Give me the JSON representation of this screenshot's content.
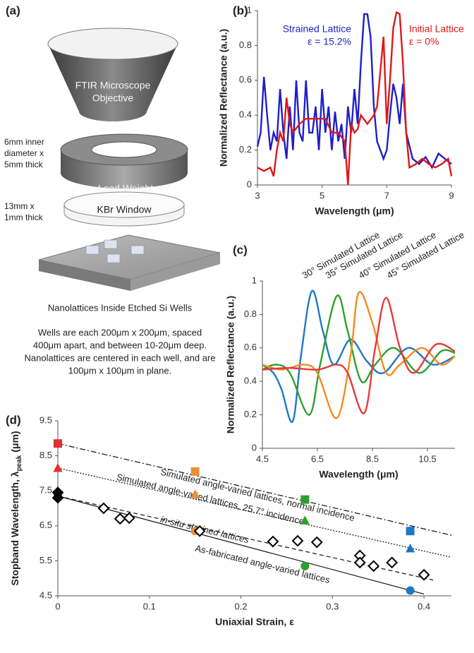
{
  "diagram": {
    "label": "(a)",
    "objective": [
      "FTIR Microscope",
      "Objective"
    ],
    "weight_note": [
      "6mm inner",
      "diameter x",
      "5mm thick"
    ],
    "weight": "Lead Weight",
    "window_note": [
      "13mm x",
      "1mm thick"
    ],
    "window": "KBr Window",
    "caption": "Nanolattices Inside Etched Si Wells",
    "description": [
      "Wells are each 200μm x 200μm, spaced",
      "400μm apart, and between 10-20μm deep.",
      "Nanolattices are centered in each well, and are",
      "100μm x 100μm in plane."
    ]
  },
  "chart_data": [
    {
      "type": "line",
      "label": "(b)",
      "x_label": "Wavelength (μm)",
      "y_label": "Normalized Reflectance (a.u.)",
      "xlim": [
        3,
        9
      ],
      "xticks": [
        3,
        5,
        7,
        9
      ],
      "ylim": [
        0,
        1
      ],
      "yticks": [
        0,
        0.2,
        0.4,
        0.6,
        0.8,
        1
      ],
      "series": [
        {
          "name": "Strained Lattice",
          "annotation": "ε = 15.2%",
          "color": "#1f1fc8",
          "x": [
            3,
            3.1,
            3.2,
            3.3,
            3.4,
            3.5,
            3.6,
            3.7,
            3.8,
            3.9,
            4.0,
            4.1,
            4.2,
            4.3,
            4.4,
            4.5,
            4.6,
            4.7,
            4.8,
            4.9,
            5.0,
            5.1,
            5.2,
            5.3,
            5.4,
            5.5,
            5.6,
            5.7,
            5.8,
            5.9,
            6.0,
            6.1,
            6.2,
            6.3,
            6.4,
            6.5,
            6.6,
            6.7,
            6.8,
            6.9,
            7.0,
            7.1,
            7.2,
            7.3,
            7.4,
            7.5,
            7.6,
            7.8,
            8.0,
            8.2,
            8.4,
            8.6,
            8.8,
            9.0
          ],
          "values": [
            0.22,
            0.3,
            0.62,
            0.4,
            0.2,
            0.3,
            0.25,
            0.55,
            0.3,
            0.15,
            0.45,
            0.2,
            0.6,
            0.3,
            0.25,
            0.6,
            0.3,
            0.3,
            0.45,
            0.2,
            0.55,
            0.3,
            0.45,
            0.2,
            0.42,
            0.25,
            0.35,
            0.15,
            0.45,
            0.3,
            0.55,
            0.35,
            0.7,
            0.98,
            0.98,
            0.85,
            0.45,
            0.25,
            0.2,
            0.15,
            0.2,
            0.4,
            0.58,
            0.5,
            0.35,
            0.58,
            0.3,
            0.15,
            0.12,
            0.16,
            0.1,
            0.18,
            0.15,
            0.12
          ]
        },
        {
          "name": "Initial Lattice",
          "annotation": "ε = 0%",
          "color": "#e01818",
          "x": [
            3,
            3.2,
            3.4,
            3.5,
            3.6,
            3.7,
            3.8,
            3.9,
            4.0,
            4.1,
            4.3,
            4.5,
            4.8,
            5.1,
            5.3,
            5.5,
            5.7,
            5.8,
            5.9,
            6.0,
            6.1,
            6.2,
            6.4,
            6.6,
            6.7,
            6.8,
            6.9,
            7.0,
            7.1,
            7.2,
            7.3,
            7.4,
            7.5,
            7.6,
            7.7,
            7.9,
            8.1,
            8.3,
            8.5,
            8.7,
            8.9,
            9.0
          ],
          "values": [
            0.1,
            0.08,
            0.1,
            0.05,
            0.2,
            0.3,
            0.25,
            0.5,
            0.35,
            0.3,
            0.35,
            0.38,
            0.38,
            0.38,
            0.3,
            0.3,
            0.25,
            0,
            0.35,
            0.3,
            0.32,
            0.4,
            0.35,
            0.4,
            0.45,
            0.65,
            0.85,
            0.35,
            0.6,
            0.9,
            0.99,
            0.98,
            0.7,
            0.3,
            0.1,
            0.12,
            0.15,
            0.12,
            0.1,
            0.12,
            0.15,
            0.05
          ]
        }
      ]
    },
    {
      "type": "line",
      "label": "(c)",
      "x_label": "Wavelength (μm)",
      "y_label": "Normalized Reflectance (a.u.)",
      "xlim": [
        4.5,
        11.5
      ],
      "xticks": [
        4.5,
        6.5,
        8.5,
        10.5
      ],
      "ylim": [
        0,
        1
      ],
      "yticks": [
        0,
        0.2,
        0.4,
        0.6,
        0.8,
        1
      ],
      "smooth": true,
      "series": [
        {
          "name": "30° Simulated Lattice",
          "color": "#1f77c4",
          "x": [
            4.5,
            4.9,
            5.2,
            5.6,
            5.9,
            6.3,
            6.7,
            7.1,
            7.7,
            8.3,
            8.9,
            9.8,
            10.7,
            11.5
          ],
          "values": [
            0.5,
            0.45,
            0.35,
            0.16,
            0.55,
            0.94,
            0.7,
            0.5,
            0.65,
            0.52,
            0.45,
            0.6,
            0.5,
            0.55
          ]
        },
        {
          "name": "35° Simulated Lattice",
          "color": "#2ca02c",
          "x": [
            4.5,
            5.0,
            5.5,
            6.2,
            6.6,
            7.2,
            7.6,
            8.1,
            8.6,
            9.3,
            10.2,
            11.0,
            11.5
          ],
          "values": [
            0.47,
            0.5,
            0.45,
            0.2,
            0.5,
            0.91,
            0.7,
            0.4,
            0.5,
            0.6,
            0.45,
            0.58,
            0.57
          ]
        },
        {
          "name": "40° Simulated Lattice",
          "color": "#f28c1e",
          "x": [
            4.5,
            5.2,
            6.0,
            6.5,
            7.2,
            7.7,
            8.0,
            8.5,
            9.0,
            9.5,
            10.3,
            11.0,
            11.5
          ],
          "values": [
            0.5,
            0.47,
            0.5,
            0.45,
            0.18,
            0.55,
            0.93,
            0.75,
            0.45,
            0.5,
            0.6,
            0.5,
            0.55
          ]
        },
        {
          "name": "45° Simulated Lattice",
          "color": "#e8383a",
          "x": [
            4.5,
            5.5,
            6.5,
            7.2,
            7.6,
            8.2,
            8.6,
            9.0,
            9.5,
            10.0,
            10.8,
            11.5
          ],
          "values": [
            0.47,
            0.48,
            0.47,
            0.5,
            0.45,
            0.21,
            0.6,
            0.9,
            0.6,
            0.45,
            0.62,
            0.58
          ]
        }
      ]
    },
    {
      "type": "scatter",
      "label": "(d)",
      "x_label": "Uniaxial Strain, ε",
      "y_label": {
        "text": "Stopband Wavelength, λ",
        "subscript": "peak",
        "unit": "(μm)"
      },
      "xlim": [
        0,
        0.43
      ],
      "xticks": [
        0,
        0.1,
        0.2,
        0.3,
        0.4
      ],
      "ylim": [
        4.5,
        9.5
      ],
      "yticks": [
        4.5,
        5.5,
        6.5,
        7.5,
        8.5,
        9.5
      ],
      "series": [
        {
          "name": "Simulated angle-varied lattices, normal incidence",
          "style": "dash-dot",
          "color": "#222222",
          "x": [
            0,
            0.43
          ],
          "values": [
            8.85,
            6.23
          ]
        },
        {
          "name": "Simulated angle-varied lattices, 25.7° incidence",
          "style": "dotted",
          "color": "#222222",
          "x": [
            0,
            0.43
          ],
          "values": [
            8.15,
            5.6
          ]
        },
        {
          "name": "in-situ strained lattices",
          "style": "dashed",
          "color": "#222222",
          "x": [
            0,
            0.41
          ],
          "values": [
            7.35,
            4.95
          ]
        },
        {
          "name": "As-fabricated angle-varied lattices",
          "style": "solid",
          "color": "#222222",
          "x": [
            0,
            0.4
          ],
          "values": [
            7.35,
            4.55
          ]
        },
        {
          "marker": "square",
          "x": [
            0,
            0.15,
            0.27,
            0.385
          ],
          "values": [
            8.85,
            8.05,
            7.25,
            6.35
          ],
          "colors": [
            "#e03030",
            "#e8903a",
            "#2ca02c",
            "#1f77c4"
          ]
        },
        {
          "marker": "triangle",
          "x": [
            0,
            0.15,
            0.27,
            0.385
          ],
          "values": [
            8.15,
            7.4,
            6.65,
            5.85
          ],
          "colors": [
            "#e03030",
            "#e8903a",
            "#2ca02c",
            "#1f77c4"
          ]
        },
        {
          "marker": "circle",
          "x": [
            0,
            0.15,
            0.27,
            0.385
          ],
          "values": [
            7.35,
            6.35,
            5.35,
            4.65
          ],
          "colors": [
            "#e03030",
            "#e8903a",
            "#2ca02c",
            "#1f77c4"
          ]
        },
        {
          "marker": "diamond",
          "x": [
            0,
            0,
            0.05,
            0.068,
            0.078,
            0.155,
            0.235,
            0.262,
            0.283,
            0.33,
            0.33,
            0.345,
            0.365,
            0.4
          ],
          "values": [
            7.45,
            7.3,
            7.0,
            6.7,
            6.72,
            6.35,
            6.05,
            6.07,
            6.03,
            5.65,
            5.45,
            5.35,
            5.45,
            5.1
          ],
          "colors": [
            "#000000",
            "#000000",
            "#ffffff",
            "#ffffff",
            "#ffffff",
            "#ffffff",
            "#ffffff",
            "#ffffff",
            "#ffffff",
            "#ffffff",
            "#ffffff",
            "#ffffff",
            "#ffffff",
            "#ffffff"
          ]
        }
      ]
    }
  ]
}
